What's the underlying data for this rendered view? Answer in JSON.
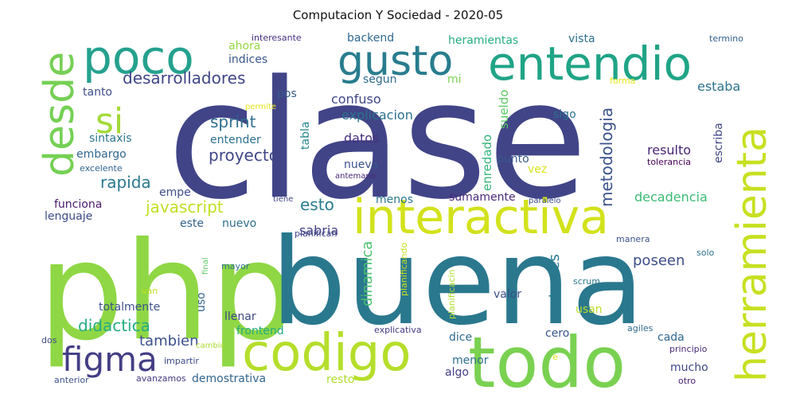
{
  "title": "Computacion Y Sociedad - 2020-05",
  "words": [
    {
      "text": "clase",
      "color": "#414487"
    },
    {
      "text": "php",
      "color": "#8fd744"
    },
    {
      "text": "buena",
      "color": "#2a788e"
    },
    {
      "text": "todo",
      "color": "#7ad151"
    },
    {
      "text": "codigo",
      "color": "#b5de2b"
    },
    {
      "text": "interactiva",
      "color": "#d2e21b"
    },
    {
      "text": "herramienta",
      "color": "#c7e020"
    },
    {
      "text": "poco",
      "color": "#25a18e"
    },
    {
      "text": "entendio",
      "color": "#20a486"
    },
    {
      "text": "gusto",
      "color": "#287c8e"
    },
    {
      "text": "desde",
      "color": "#75d054"
    },
    {
      "text": "si",
      "color": "#a2da37"
    },
    {
      "text": "figma",
      "color": "#433e85"
    },
    {
      "text": "desarrolladores",
      "color": "#404688"
    },
    {
      "text": "sprint",
      "color": "#2e6e8e"
    },
    {
      "text": "proyecto",
      "color": "#3f4788"
    },
    {
      "text": "rapida",
      "color": "#2a788e"
    },
    {
      "text": "javascript",
      "color": "#c2df23"
    },
    {
      "text": "esto",
      "color": "#287d8e"
    },
    {
      "text": "metodologia",
      "color": "#3b528b"
    },
    {
      "text": "didactica",
      "color": "#25ac82"
    },
    {
      "text": "tambien",
      "color": "#3b518b"
    },
    {
      "text": "poseen",
      "color": "#3d4e8a"
    },
    {
      "text": "dinamica",
      "color": "#4ac16d"
    },
    {
      "text": "actuales",
      "color": "#29798e"
    },
    {
      "text": "sabria",
      "color": "#433d84"
    },
    {
      "text": "explicacion",
      "color": "#2c718e"
    },
    {
      "text": "confuso",
      "color": "#3f4889"
    },
    {
      "text": "datos",
      "color": "#46307e"
    },
    {
      "text": "nueva",
      "color": "#3b528b"
    },
    {
      "text": "enredado",
      "color": "#34b679"
    },
    {
      "text": "sueldo",
      "color": "#5cc863"
    },
    {
      "text": "tabla",
      "color": "#25858e"
    },
    {
      "text": "entender",
      "color": "#2d708e"
    },
    {
      "text": "resulto",
      "color": "#482576"
    },
    {
      "text": "escriba",
      "color": "#404588"
    },
    {
      "text": "estaba",
      "color": "#2c728e"
    },
    {
      "text": "decadencia",
      "color": "#3bbb75"
    },
    {
      "text": "sumamente",
      "color": "#482979"
    },
    {
      "text": "funciona",
      "color": "#481a6c"
    },
    {
      "text": "lenguaje",
      "color": "#3e4a89"
    },
    {
      "text": "embargo",
      "color": "#31688e"
    },
    {
      "text": "sintaxis",
      "color": "#2a768e"
    },
    {
      "text": "tanto",
      "color": "#3d4d8a"
    },
    {
      "text": "indices",
      "color": "#38588c"
    },
    {
      "text": "segun",
      "color": "#2f6b8e"
    },
    {
      "text": "pos",
      "color": "#365c8d"
    },
    {
      "text": "backend",
      "color": "#30698e"
    },
    {
      "text": "heramientas",
      "color": "#27ad81"
    },
    {
      "text": "vista",
      "color": "#2e6f8e"
    },
    {
      "text": "ahora",
      "color": "#95d840"
    },
    {
      "text": "mi",
      "color": "#7ad151"
    },
    {
      "text": "sigo",
      "color": "#2c718e"
    },
    {
      "text": "punto",
      "color": "#37598c"
    },
    {
      "text": "vez",
      "color": "#d8e219"
    },
    {
      "text": "menos",
      "color": "#2a768e"
    },
    {
      "text": "empe",
      "color": "#3e4c8a"
    },
    {
      "text": "este",
      "color": "#33638d"
    },
    {
      "text": "nuevo",
      "color": "#2e6e8e"
    },
    {
      "text": "totalmente",
      "color": "#3b528b"
    },
    {
      "text": "uso",
      "color": "#33638d"
    },
    {
      "text": "llenar",
      "color": "#3f4788"
    },
    {
      "text": "frontend",
      "color": "#25ab82"
    },
    {
      "text": "valor",
      "color": "#3c508b"
    },
    {
      "text": "usan",
      "color": "#b8de29"
    },
    {
      "text": "dice",
      "color": "#30698e"
    },
    {
      "text": "cero",
      "color": "#39568c"
    },
    {
      "text": "menor",
      "color": "#2e6f8e"
    },
    {
      "text": "algo",
      "color": "#433e85"
    },
    {
      "text": "cada",
      "color": "#31678e"
    },
    {
      "text": "mucho",
      "color": "#3f4889"
    },
    {
      "text": "resto",
      "color": "#b0dd2f"
    },
    {
      "text": "demostrativa",
      "color": "#32658e"
    },
    {
      "text": "interesante",
      "color": "#46307e"
    },
    {
      "text": "termino",
      "color": "#34618d"
    },
    {
      "text": "forma",
      "color": "#e2e418"
    },
    {
      "text": "permite",
      "color": "#e5e419"
    },
    {
      "text": "antemano",
      "color": "#482878"
    },
    {
      "text": "tolerancia",
      "color": "#440154"
    },
    {
      "text": "excelente",
      "color": "#32648e"
    },
    {
      "text": "tiene",
      "color": "#404588"
    },
    {
      "text": "paralelo",
      "color": "#3e4989"
    },
    {
      "text": "planifican",
      "color": "#3f4788"
    },
    {
      "text": "planificando",
      "color": "#c8e020"
    },
    {
      "text": "planificacin",
      "color": "#b0dd2f"
    },
    {
      "text": "manera",
      "color": "#3b528b"
    },
    {
      "text": "solo",
      "color": "#2d708e"
    },
    {
      "text": "final",
      "color": "#5ec962"
    },
    {
      "text": "mayor",
      "color": "#2c718e"
    },
    {
      "text": "van",
      "color": "#c2df23"
    },
    {
      "text": "scrum",
      "color": "#2a788e"
    },
    {
      "text": "explicativa",
      "color": "#453882"
    },
    {
      "text": "agiles",
      "color": "#31688e"
    },
    {
      "text": "principio",
      "color": "#472a7a"
    },
    {
      "text": "cambio",
      "color": "#addc30"
    },
    {
      "text": "impartir",
      "color": "#3e4a89"
    },
    {
      "text": "dos",
      "color": "#3f4788"
    },
    {
      "text": "e",
      "color": "#dde318"
    },
    {
      "text": "anterior",
      "color": "#3b528b"
    },
    {
      "text": "avanzamos",
      "color": "#453781"
    },
    {
      "text": "otro",
      "color": "#481f70"
    }
  ]
}
